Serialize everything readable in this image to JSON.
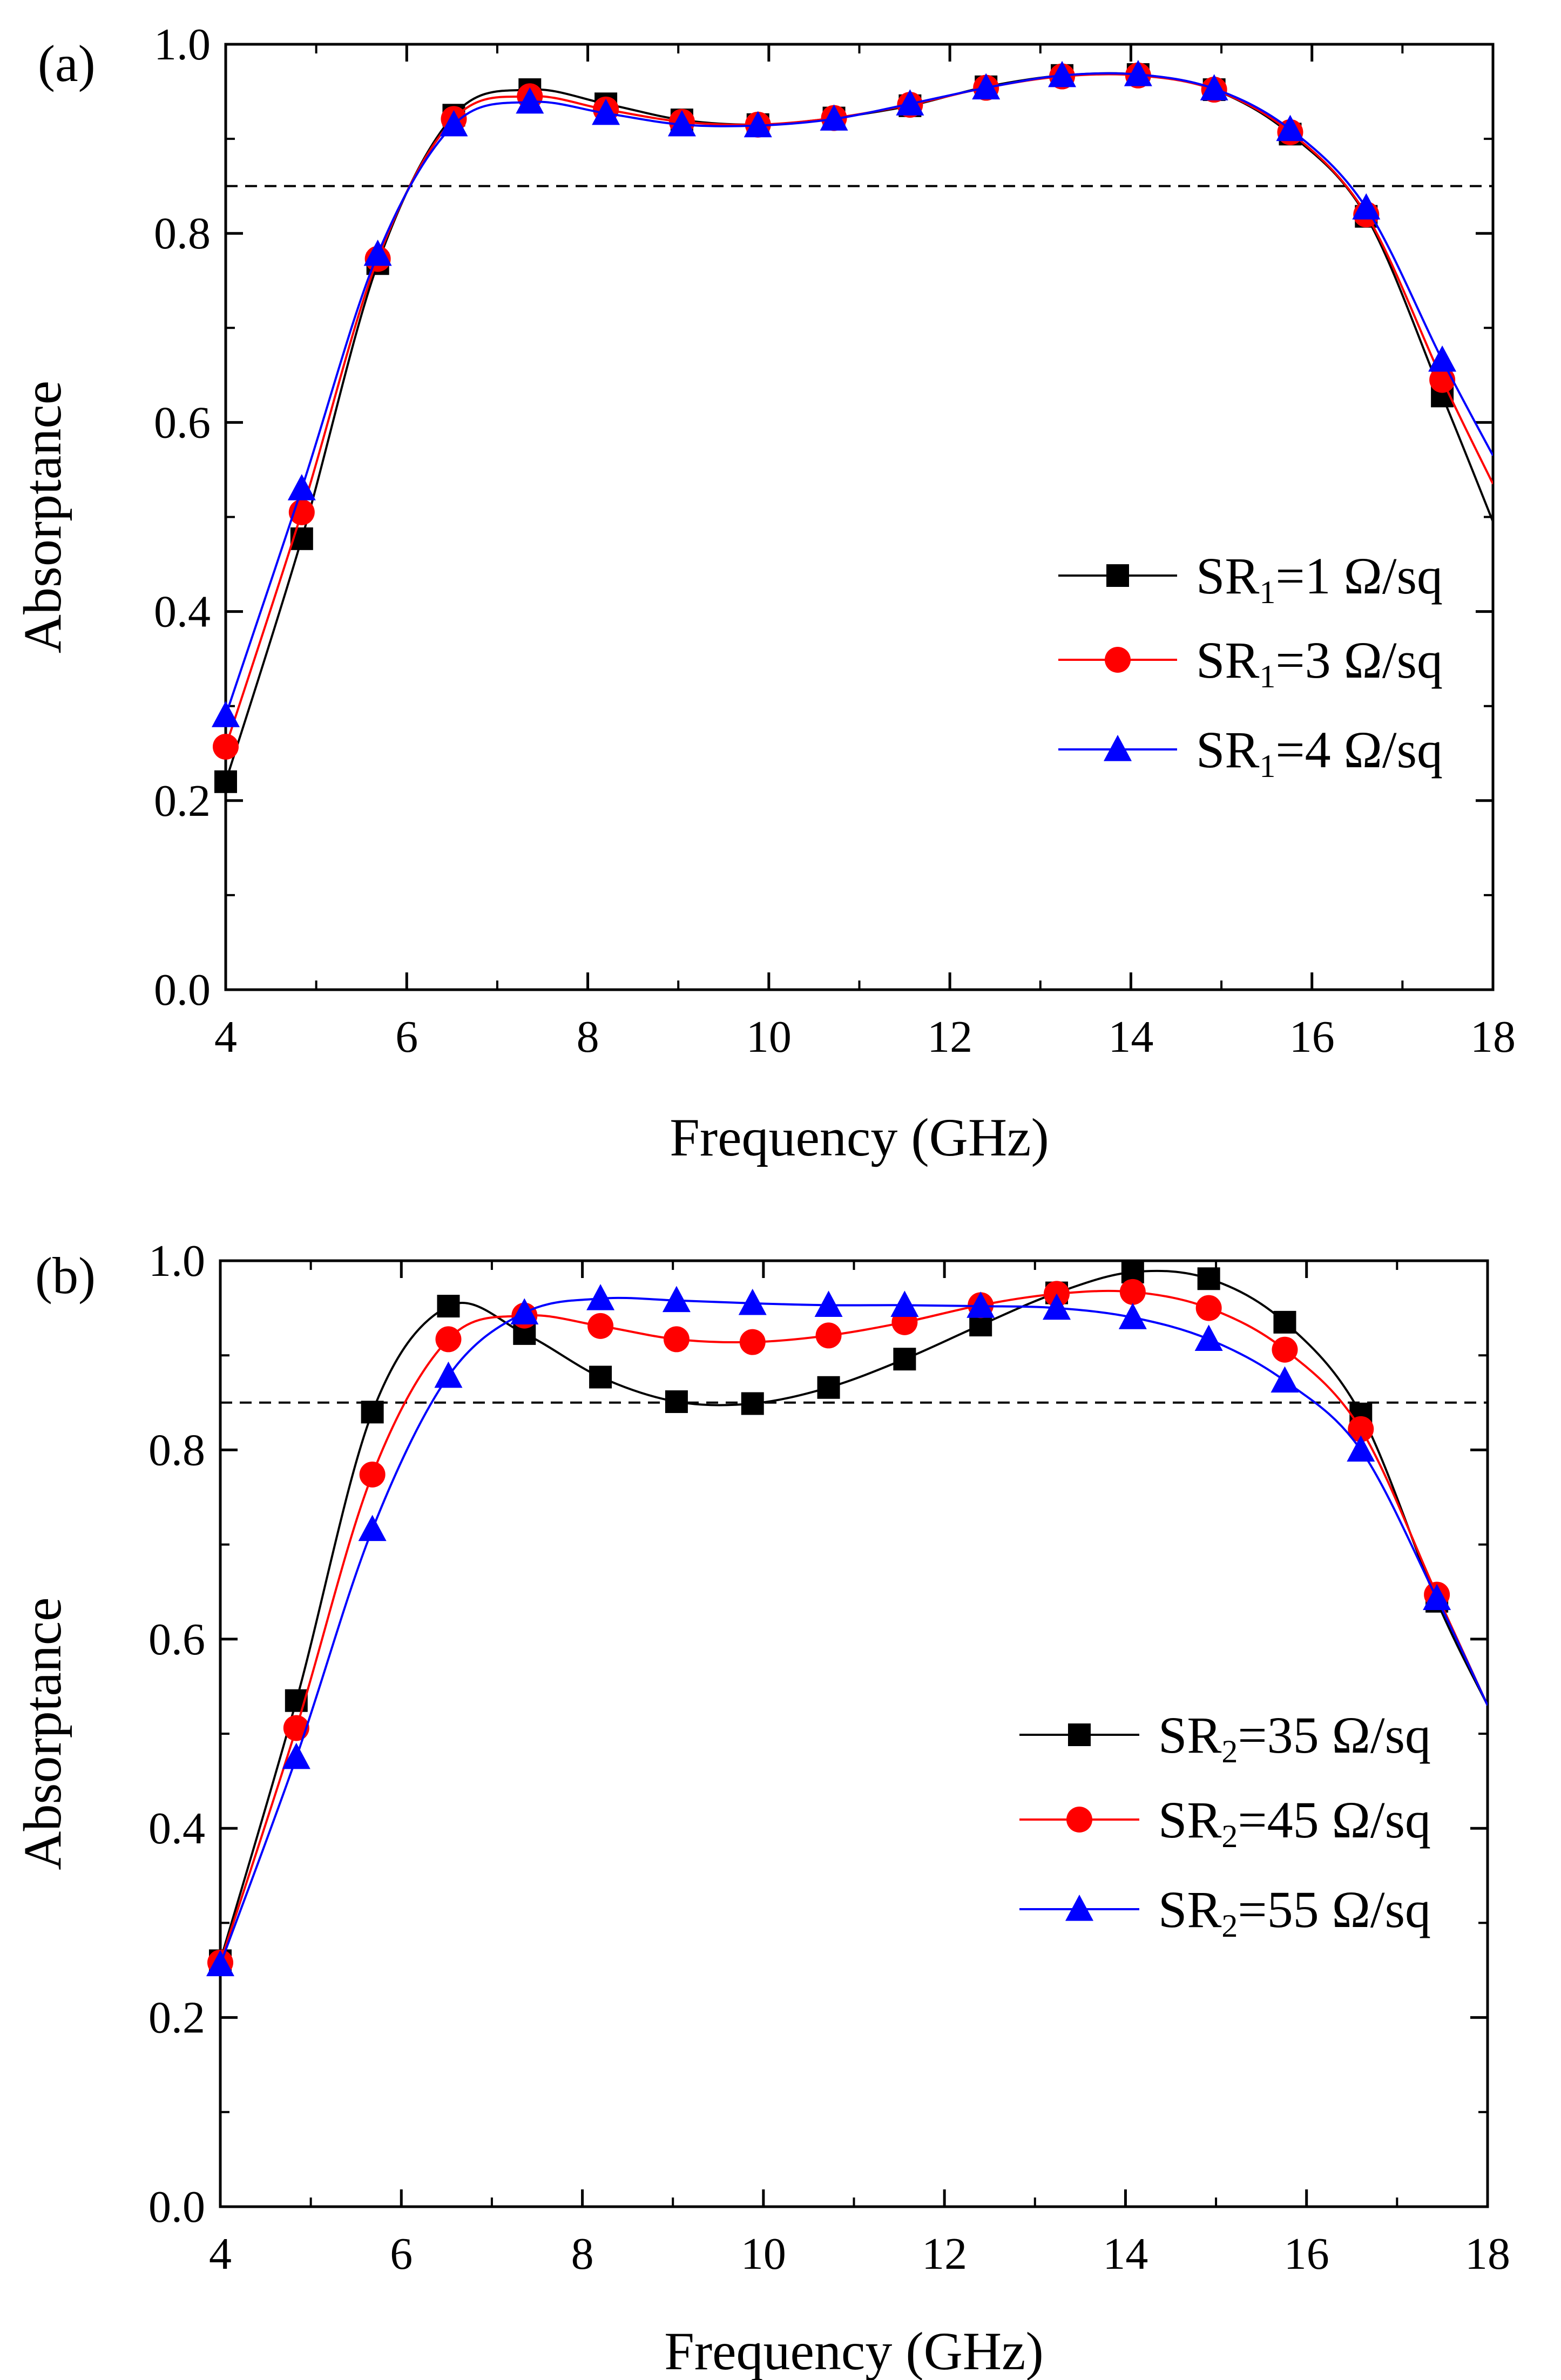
{
  "colors": {
    "black": "#000000",
    "red": "#ff0000",
    "blue": "#0000ff"
  },
  "chart_data": [
    {
      "type": "line",
      "panel_label": "(a)",
      "xlabel": "Frequency (GHz)",
      "ylabel": "Absorptance",
      "xlim": [
        4,
        18
      ],
      "ylim": [
        0,
        1.0
      ],
      "xticks": [
        4,
        6,
        8,
        10,
        12,
        14,
        16,
        18
      ],
      "yticks": [
        0.0,
        0.2,
        0.4,
        0.6,
        0.8,
        1.0
      ],
      "xtick_labels": [
        "4",
        "6",
        "8",
        "10",
        "12",
        "14",
        "16",
        "18"
      ],
      "ytick_labels": [
        "0.0",
        "0.2",
        "0.4",
        "0.6",
        "0.8",
        "1.0"
      ],
      "reference_line": {
        "y": 0.85,
        "style": "dashed"
      },
      "legend_position": "right-middle",
      "series": [
        {
          "name": "SR1=1 Ω/sq",
          "label_pre": "SR",
          "label_sub": "1",
          "label_post": "=1 Ω/sq",
          "color": "#000000",
          "marker": "square",
          "x": [
            4.0,
            4.84,
            5.68,
            6.52,
            7.36,
            8.2,
            9.04,
            9.88,
            10.72,
            11.56,
            12.4,
            13.24,
            14.08,
            14.92,
            15.76,
            16.6,
            17.44
          ],
          "y": [
            0.22,
            0.477,
            0.768,
            0.925,
            0.952,
            0.937,
            0.92,
            0.915,
            0.922,
            0.935,
            0.955,
            0.967,
            0.968,
            0.952,
            0.905,
            0.818,
            0.628
          ],
          "curve_end": 0.495
        },
        {
          "name": "SR1=3 Ω/sq",
          "label_pre": "SR",
          "label_sub": "1",
          "label_post": "=3 Ω/sq",
          "color": "#ff0000",
          "marker": "circle",
          "x": [
            4.0,
            4.84,
            5.68,
            6.52,
            7.36,
            8.2,
            9.04,
            9.88,
            10.72,
            11.56,
            12.4,
            13.24,
            14.08,
            14.92,
            15.76,
            16.6,
            17.44
          ],
          "y": [
            0.257,
            0.505,
            0.773,
            0.921,
            0.945,
            0.931,
            0.918,
            0.915,
            0.922,
            0.936,
            0.954,
            0.966,
            0.967,
            0.952,
            0.907,
            0.82,
            0.645
          ],
          "curve_end": 0.535
        },
        {
          "name": "SR1=4 Ω/sq",
          "label_pre": "SR",
          "label_sub": "1",
          "label_post": "=4 Ω/sq",
          "color": "#0000ff",
          "marker": "triangle",
          "x": [
            4.0,
            4.84,
            5.68,
            6.52,
            7.36,
            8.2,
            9.04,
            9.88,
            10.72,
            11.56,
            12.4,
            13.24,
            14.08,
            14.92,
            15.76,
            16.6,
            17.44
          ],
          "y": [
            0.29,
            0.53,
            0.778,
            0.915,
            0.939,
            0.927,
            0.915,
            0.914,
            0.921,
            0.937,
            0.954,
            0.967,
            0.968,
            0.953,
            0.91,
            0.827,
            0.666
          ],
          "curve_end": 0.565
        }
      ]
    },
    {
      "type": "line",
      "panel_label": "(b)",
      "xlabel": "Frequency (GHz)",
      "ylabel": "Absorptance",
      "xlim": [
        4,
        18
      ],
      "ylim": [
        0,
        1.0
      ],
      "xticks": [
        4,
        6,
        8,
        10,
        12,
        14,
        16,
        18
      ],
      "yticks": [
        0.0,
        0.2,
        0.4,
        0.6,
        0.8,
        1.0
      ],
      "xtick_labels": [
        "4",
        "6",
        "8",
        "10",
        "12",
        "14",
        "16",
        "18"
      ],
      "ytick_labels": [
        "0.0",
        "0.2",
        "0.4",
        "0.6",
        "0.8",
        "1.0"
      ],
      "reference_line": {
        "y": 0.85,
        "style": "dashed"
      },
      "legend_position": "right-middle",
      "series": [
        {
          "name": "SR2=35 Ω/sq",
          "label_pre": "SR",
          "label_sub": "2",
          "label_post": "=35 Ω/sq",
          "color": "#000000",
          "marker": "square",
          "x": [
            4.0,
            4.84,
            5.68,
            6.52,
            7.36,
            8.2,
            9.04,
            9.88,
            10.72,
            11.56,
            12.4,
            13.24,
            14.08,
            14.92,
            15.76,
            16.6,
            17.44
          ],
          "y": [
            0.26,
            0.535,
            0.84,
            0.952,
            0.923,
            0.877,
            0.851,
            0.849,
            0.866,
            0.896,
            0.932,
            0.966,
            0.988,
            0.981,
            0.935,
            0.838,
            0.64
          ],
          "curve_end": 0.53
        },
        {
          "name": "SR2=45 Ω/sq",
          "label_pre": "SR",
          "label_sub": "2",
          "label_post": "=45 Ω/sq",
          "color": "#ff0000",
          "marker": "circle",
          "x": [
            4.0,
            4.84,
            5.68,
            6.52,
            7.36,
            8.2,
            9.04,
            9.88,
            10.72,
            11.56,
            12.4,
            13.24,
            14.08,
            14.92,
            15.76,
            16.6,
            17.44
          ],
          "y": [
            0.258,
            0.506,
            0.774,
            0.917,
            0.942,
            0.931,
            0.917,
            0.914,
            0.921,
            0.935,
            0.953,
            0.965,
            0.967,
            0.95,
            0.906,
            0.822,
            0.647
          ],
          "curve_end": 0.53
        },
        {
          "name": "SR2=55 Ω/sq",
          "label_pre": "SR",
          "label_sub": "2",
          "label_post": "=55 Ω/sq",
          "color": "#0000ff",
          "marker": "triangle",
          "x": [
            4.0,
            4.84,
            5.68,
            6.52,
            7.36,
            8.2,
            9.04,
            9.88,
            10.72,
            11.56,
            12.4,
            13.24,
            14.08,
            14.92,
            15.76,
            16.6,
            17.44
          ],
          "y": [
            0.256,
            0.475,
            0.716,
            0.878,
            0.945,
            0.96,
            0.958,
            0.955,
            0.953,
            0.953,
            0.952,
            0.95,
            0.94,
            0.917,
            0.873,
            0.8,
            0.643
          ],
          "curve_end": 0.53
        }
      ]
    }
  ]
}
